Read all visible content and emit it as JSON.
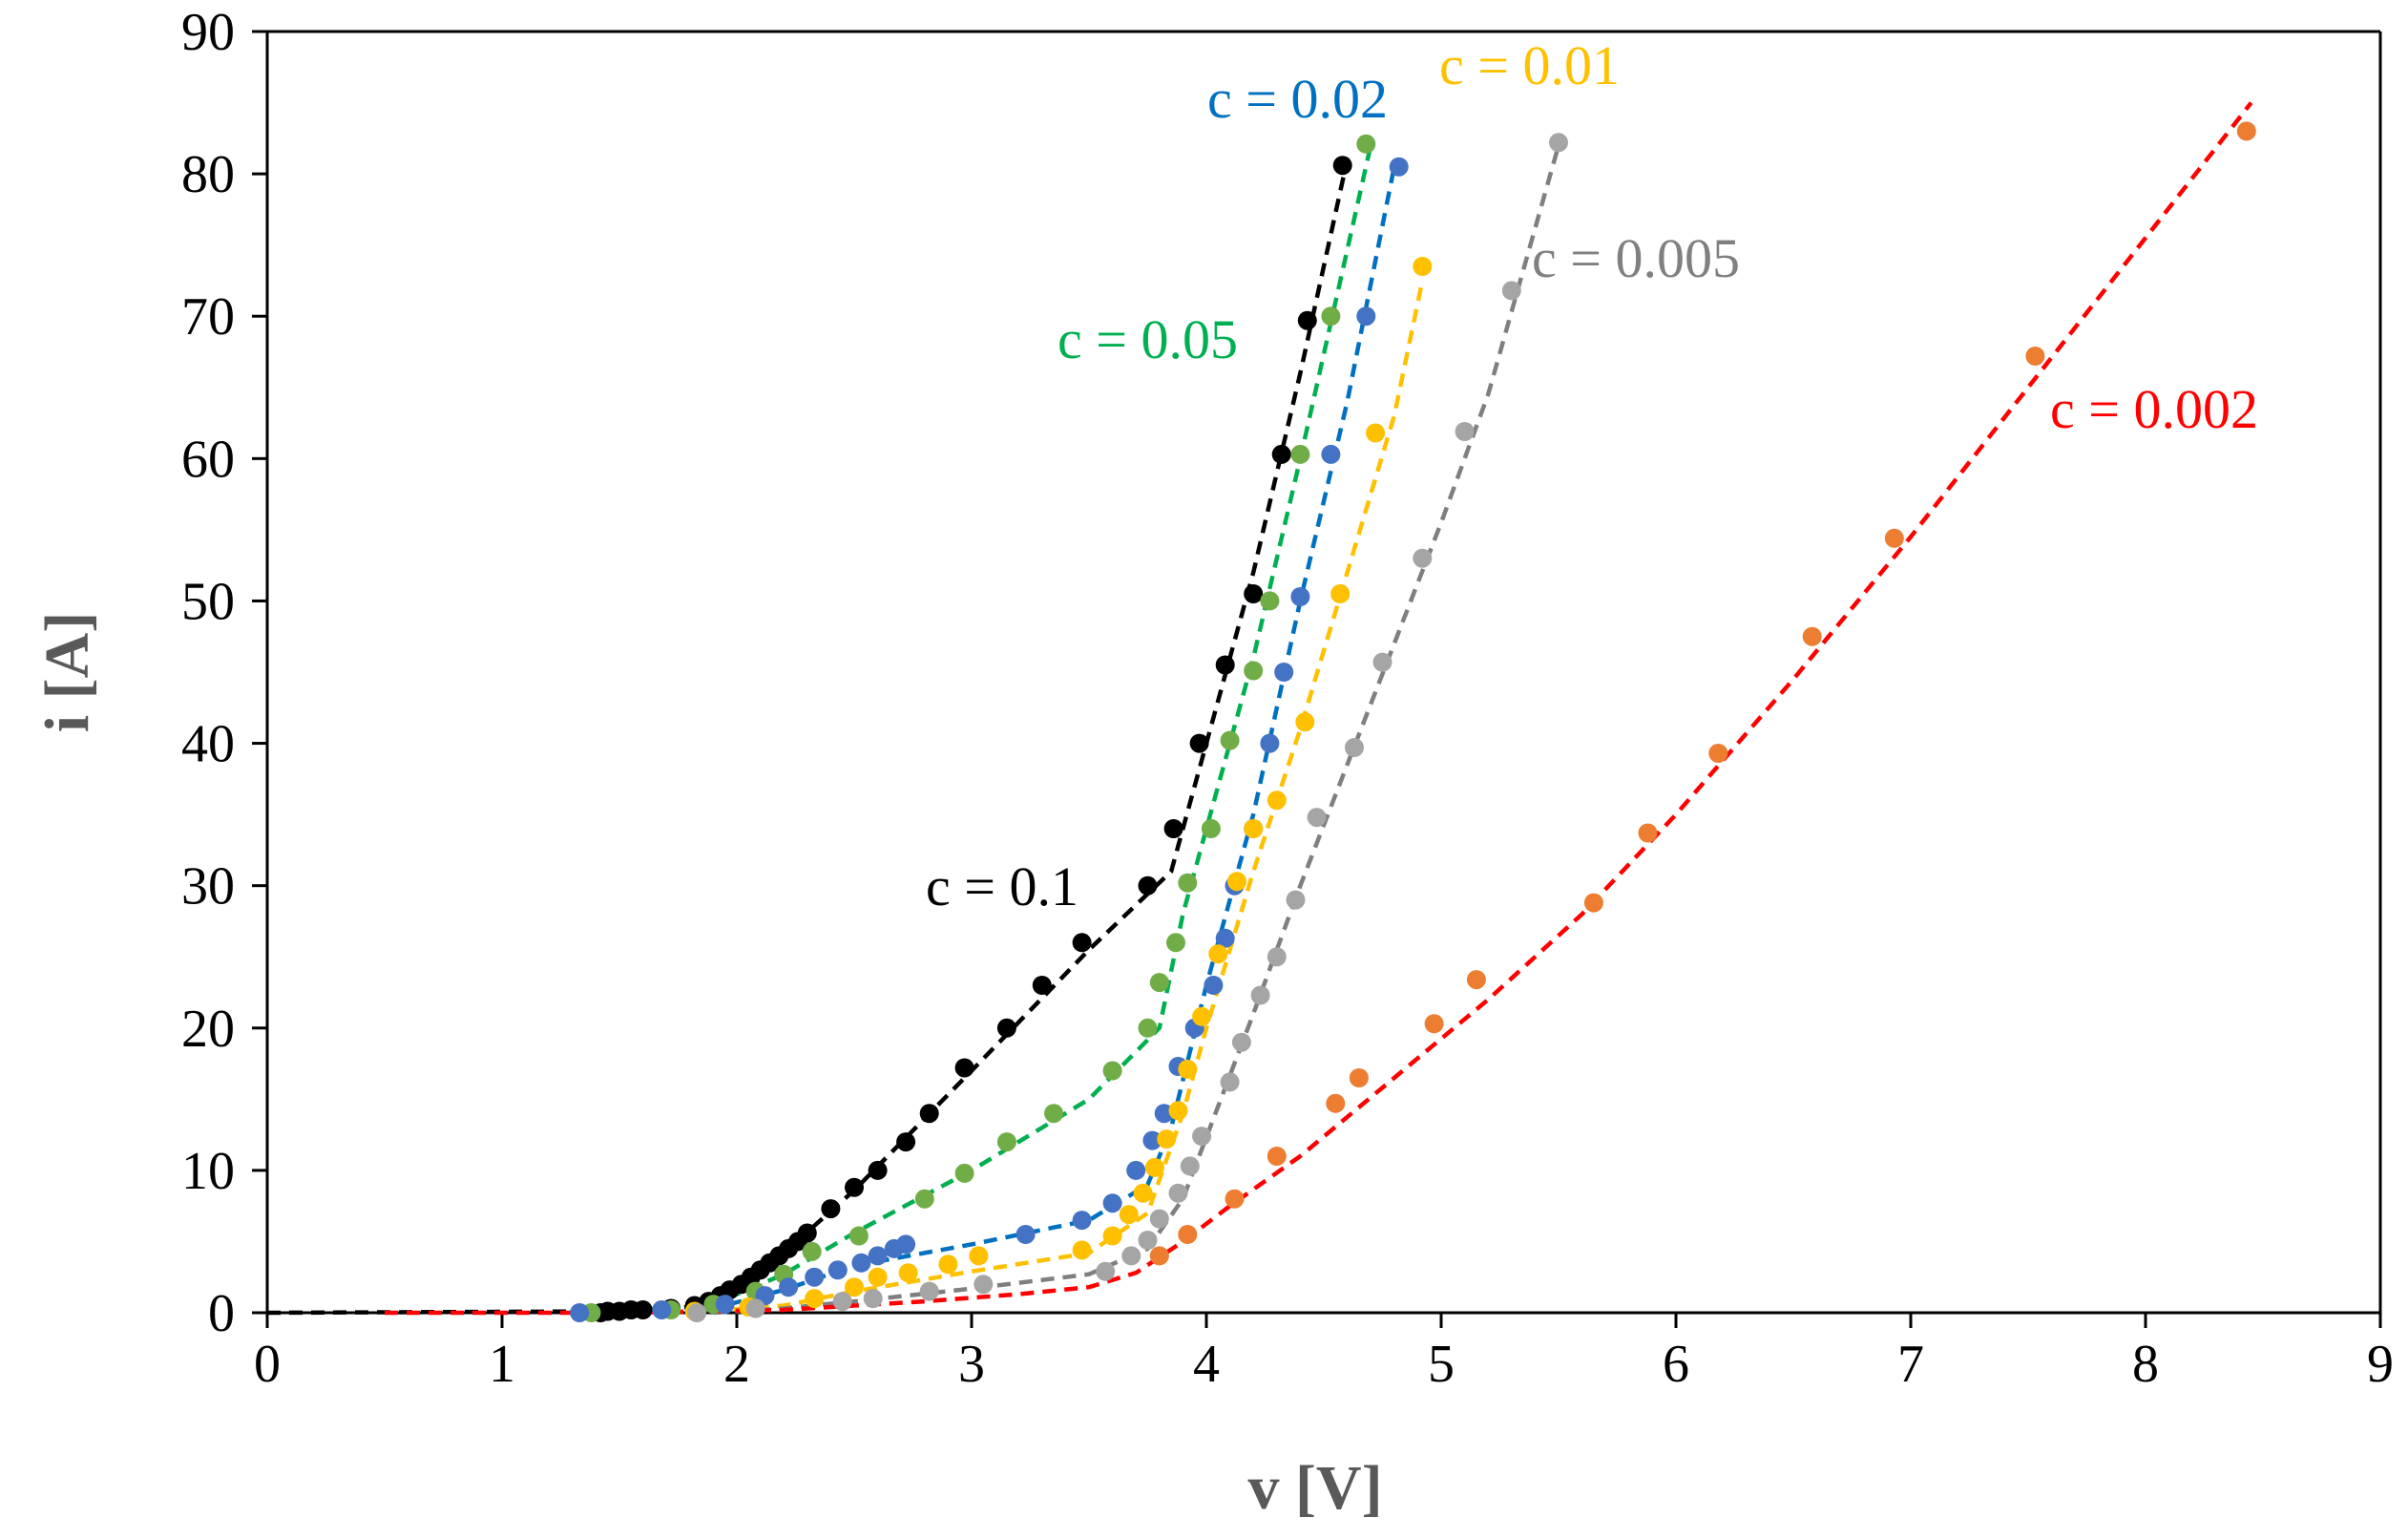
{
  "chart_data": {
    "type": "scatter",
    "title": "",
    "xlabel": "v [V]",
    "ylabel": "i [A]",
    "xlim": [
      0,
      9
    ],
    "ylim": [
      0,
      90
    ],
    "xticks": [
      "0",
      "1",
      "2",
      "3",
      "4",
      "5",
      "6",
      "7",
      "8",
      "9"
    ],
    "yticks": [
      "0",
      "10",
      "20",
      "30",
      "40",
      "50",
      "60",
      "70",
      "80",
      "90"
    ],
    "grid": false,
    "legend": "none",
    "series": [
      {
        "name": "c = 0.1",
        "label": "c = 0.1",
        "label_color": "#000000",
        "marker_color": "#000000",
        "line_color": "#000000",
        "points": [
          [
            1.42,
            0.0
          ],
          [
            1.45,
            0.1
          ],
          [
            1.5,
            0.1
          ],
          [
            1.55,
            0.2
          ],
          [
            1.6,
            0.2
          ],
          [
            1.72,
            0.3
          ],
          [
            1.82,
            0.5
          ],
          [
            1.88,
            0.8
          ],
          [
            1.93,
            1.2
          ],
          [
            1.97,
            1.6
          ],
          [
            2.02,
            2.0
          ],
          [
            2.06,
            2.5
          ],
          [
            2.1,
            3.0
          ],
          [
            2.14,
            3.5
          ],
          [
            2.18,
            4.0
          ],
          [
            2.22,
            4.5
          ],
          [
            2.26,
            5.0
          ],
          [
            2.3,
            5.6
          ],
          [
            2.4,
            7.3
          ],
          [
            2.5,
            8.8
          ],
          [
            2.6,
            10.0
          ],
          [
            2.72,
            12.0
          ],
          [
            2.82,
            14.0
          ],
          [
            2.97,
            17.2
          ],
          [
            3.15,
            20.0
          ],
          [
            3.3,
            23.0
          ],
          [
            3.47,
            26.0
          ],
          [
            3.75,
            30.0
          ],
          [
            3.86,
            34.0
          ],
          [
            3.97,
            40.0
          ],
          [
            4.08,
            45.5
          ],
          [
            4.2,
            50.5
          ],
          [
            4.32,
            60.3
          ],
          [
            4.43,
            69.7
          ],
          [
            4.58,
            80.6
          ]
        ],
        "fit": [
          [
            0,
            0
          ],
          [
            1.5,
            0.1
          ],
          [
            1.8,
            0.4
          ],
          [
            2.0,
            1.6
          ],
          [
            2.2,
            4.2
          ],
          [
            2.5,
            8.6
          ],
          [
            3.0,
            17.0
          ],
          [
            3.5,
            25.5
          ],
          [
            3.85,
            31.0
          ],
          [
            4.0,
            40.0
          ],
          [
            4.2,
            52.0
          ],
          [
            4.4,
            66.0
          ],
          [
            4.6,
            81.0
          ]
        ]
      },
      {
        "name": "c = 0.05",
        "label": "c = 0.05",
        "label_color": "#00B050",
        "marker_color": "#70AD47",
        "line_color": "#00B050",
        "points": [
          [
            1.38,
            0.0
          ],
          [
            1.72,
            0.2
          ],
          [
            1.9,
            0.6
          ],
          [
            2.08,
            1.5
          ],
          [
            2.2,
            2.7
          ],
          [
            2.32,
            4.3
          ],
          [
            2.52,
            5.4
          ],
          [
            2.8,
            8.0
          ],
          [
            2.97,
            9.8
          ],
          [
            3.15,
            12.0
          ],
          [
            3.35,
            14.0
          ],
          [
            3.6,
            17.0
          ],
          [
            3.75,
            20.0
          ],
          [
            3.8,
            23.2
          ],
          [
            3.87,
            26.0
          ],
          [
            3.92,
            30.2
          ],
          [
            4.02,
            34.0
          ],
          [
            4.1,
            40.2
          ],
          [
            4.2,
            45.1
          ],
          [
            4.27,
            50.0
          ],
          [
            4.4,
            60.3
          ],
          [
            4.53,
            70.0
          ],
          [
            4.68,
            82.1
          ]
        ],
        "fit": [
          [
            1.5,
            0.0
          ],
          [
            1.9,
            0.6
          ],
          [
            2.2,
            2.7
          ],
          [
            2.5,
            5.6
          ],
          [
            3.0,
            10.0
          ],
          [
            3.5,
            15.0
          ],
          [
            3.8,
            20.0
          ],
          [
            3.9,
            28.0
          ],
          [
            4.0,
            34.0
          ],
          [
            4.2,
            46.0
          ],
          [
            4.4,
            60.0
          ],
          [
            4.55,
            71.0
          ],
          [
            4.7,
            82.0
          ]
        ]
      },
      {
        "name": "c = 0.02",
        "label": "c = 0.02",
        "label_color": "#0070C0",
        "marker_color": "#4472C4",
        "line_color": "#0070C0",
        "points": [
          [
            1.33,
            0.0
          ],
          [
            1.68,
            0.2
          ],
          [
            1.95,
            0.6
          ],
          [
            2.12,
            1.2
          ],
          [
            2.22,
            1.8
          ],
          [
            2.33,
            2.5
          ],
          [
            2.43,
            3.0
          ],
          [
            2.53,
            3.5
          ],
          [
            2.6,
            4.0
          ],
          [
            2.67,
            4.5
          ],
          [
            2.72,
            4.8
          ],
          [
            3.23,
            5.5
          ],
          [
            3.47,
            6.5
          ],
          [
            3.6,
            7.7
          ],
          [
            3.7,
            10.0
          ],
          [
            3.77,
            12.1
          ],
          [
            3.82,
            14.0
          ],
          [
            3.88,
            17.3
          ],
          [
            3.95,
            20.0
          ],
          [
            4.03,
            23.0
          ],
          [
            4.08,
            26.3
          ],
          [
            4.12,
            30.0
          ],
          [
            4.2,
            34.0
          ],
          [
            4.27,
            40.0
          ],
          [
            4.33,
            45.0
          ],
          [
            4.4,
            50.3
          ],
          [
            4.53,
            60.3
          ],
          [
            4.68,
            70.0
          ],
          [
            4.82,
            80.5
          ]
        ],
        "fit": [
          [
            1.5,
            0.0
          ],
          [
            1.9,
            0.3
          ],
          [
            2.2,
            1.6
          ],
          [
            2.5,
            3.3
          ],
          [
            3.0,
            4.8
          ],
          [
            3.5,
            6.5
          ],
          [
            3.75,
            9.0
          ],
          [
            3.85,
            13.0
          ],
          [
            4.0,
            23.0
          ],
          [
            4.1,
            29.0
          ],
          [
            4.2,
            35.0
          ],
          [
            4.4,
            50.0
          ],
          [
            4.6,
            64.0
          ],
          [
            4.8,
            80.5
          ]
        ]
      },
      {
        "name": "c = 0.01",
        "label": "c = 0.01",
        "label_color": "#FFC000",
        "marker_color": "#FFC000",
        "line_color": "#FFC000",
        "points": [
          [
            1.82,
            0.1
          ],
          [
            2.05,
            0.4
          ],
          [
            2.33,
            1.0
          ],
          [
            2.5,
            1.8
          ],
          [
            2.6,
            2.5
          ],
          [
            2.73,
            2.8
          ],
          [
            2.9,
            3.4
          ],
          [
            3.03,
            4.0
          ],
          [
            3.47,
            4.4
          ],
          [
            3.6,
            5.4
          ],
          [
            3.67,
            6.9
          ],
          [
            3.73,
            8.4
          ],
          [
            3.78,
            10.2
          ],
          [
            3.83,
            12.2
          ],
          [
            3.88,
            14.2
          ],
          [
            3.92,
            17.1
          ],
          [
            3.98,
            20.8
          ],
          [
            4.05,
            25.2
          ],
          [
            4.13,
            30.3
          ],
          [
            4.2,
            34.0
          ],
          [
            4.3,
            36.0
          ],
          [
            4.42,
            41.5
          ],
          [
            4.57,
            50.5
          ],
          [
            4.72,
            61.8
          ],
          [
            4.92,
            73.5
          ]
        ],
        "fit": [
          [
            1.8,
            0.0
          ],
          [
            2.2,
            0.5
          ],
          [
            2.5,
            1.5
          ],
          [
            3.0,
            2.9
          ],
          [
            3.5,
            4.2
          ],
          [
            3.75,
            7.0
          ],
          [
            3.9,
            14.0
          ],
          [
            4.0,
            20.0
          ],
          [
            4.2,
            31.0
          ],
          [
            4.4,
            41.0
          ],
          [
            4.6,
            52.0
          ],
          [
            4.8,
            63.0
          ],
          [
            4.92,
            72.5
          ]
        ]
      },
      {
        "name": "c = 0.005",
        "label": "c = 0.005",
        "label_color": "#808080",
        "marker_color": "#A5A5A5",
        "line_color": "#7F7F7F",
        "points": [
          [
            1.83,
            0.0
          ],
          [
            2.08,
            0.3
          ],
          [
            2.45,
            0.8
          ],
          [
            2.58,
            1.0
          ],
          [
            2.82,
            1.5
          ],
          [
            3.05,
            2.0
          ],
          [
            3.57,
            2.9
          ],
          [
            3.68,
            4.0
          ],
          [
            3.75,
            5.1
          ],
          [
            3.8,
            6.6
          ],
          [
            3.88,
            8.4
          ],
          [
            3.93,
            10.3
          ],
          [
            3.98,
            12.4
          ],
          [
            4.1,
            16.2
          ],
          [
            4.15,
            19.0
          ],
          [
            4.23,
            22.3
          ],
          [
            4.3,
            25.0
          ],
          [
            4.38,
            29.0
          ],
          [
            4.47,
            34.8
          ],
          [
            4.63,
            39.7
          ],
          [
            4.75,
            45.7
          ],
          [
            4.92,
            53.0
          ],
          [
            5.1,
            61.9
          ],
          [
            5.3,
            71.8
          ],
          [
            5.5,
            82.2
          ]
        ],
        "fit": [
          [
            1.9,
            0.0
          ],
          [
            2.2,
            0.3
          ],
          [
            2.5,
            0.8
          ],
          [
            3.0,
            1.7
          ],
          [
            3.5,
            2.7
          ],
          [
            3.75,
            4.5
          ],
          [
            3.9,
            8.0
          ],
          [
            4.05,
            14.5
          ],
          [
            4.2,
            21.0
          ],
          [
            4.4,
            30.0
          ],
          [
            4.6,
            38.5
          ],
          [
            4.8,
            47.0
          ],
          [
            5.0,
            55.5
          ],
          [
            5.2,
            64.5
          ],
          [
            5.5,
            82.0
          ]
        ]
      },
      {
        "name": "c = 0.002",
        "label": "c = 0.002",
        "label_color": "#FF0000",
        "marker_color": "#ED7D31",
        "line_color": "#FF0000",
        "points": [
          [
            3.8,
            4.0
          ],
          [
            3.92,
            5.5
          ],
          [
            4.12,
            8.0
          ],
          [
            4.3,
            11.0
          ],
          [
            4.55,
            14.7
          ],
          [
            4.65,
            16.5
          ],
          [
            4.97,
            20.3
          ],
          [
            5.15,
            23.4
          ],
          [
            5.65,
            28.8
          ],
          [
            5.88,
            33.7
          ],
          [
            6.18,
            39.3
          ],
          [
            6.58,
            47.5
          ],
          [
            6.93,
            54.4
          ],
          [
            7.53,
            67.2
          ],
          [
            8.43,
            83.0
          ]
        ],
        "fit": [
          [
            0.5,
            0.0
          ],
          [
            1.5,
            0.0
          ],
          [
            2.2,
            0.2
          ],
          [
            2.8,
            0.8
          ],
          [
            3.2,
            1.3
          ],
          [
            3.5,
            1.8
          ],
          [
            3.7,
            2.8
          ],
          [
            3.9,
            5.0
          ],
          [
            4.1,
            7.5
          ],
          [
            4.4,
            11.0
          ],
          [
            4.8,
            16.5
          ],
          [
            5.2,
            22.0
          ],
          [
            5.6,
            28.0
          ],
          [
            6.0,
            35.0
          ],
          [
            6.5,
            44.5
          ],
          [
            7.0,
            54.5
          ],
          [
            7.5,
            65.0
          ],
          [
            8.0,
            75.5
          ],
          [
            8.45,
            85.0
          ]
        ]
      }
    ]
  }
}
